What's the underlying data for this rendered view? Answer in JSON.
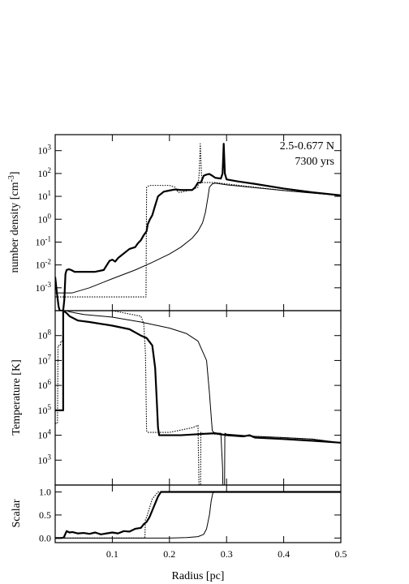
{
  "chart_data": [
    {
      "type": "line",
      "panel": "top",
      "ylabel_main": "number density [cm",
      "ylabel_sup": "-3",
      "ylabel_end": "]",
      "yscale": "log",
      "ylim": [
        0.0001,
        5000
      ],
      "xlim": [
        0.0,
        0.5
      ],
      "yticks": [
        {
          "v": 0.001,
          "base": "10",
          "exp": "-3"
        },
        {
          "v": 0.01,
          "base": "10",
          "exp": "-2"
        },
        {
          "v": 0.1,
          "base": "10",
          "exp": "-1"
        },
        {
          "v": 1,
          "base": "10",
          "exp": "0"
        },
        {
          "v": 10,
          "base": "10",
          "exp": "1"
        },
        {
          "v": 100,
          "base": "10",
          "exp": "2"
        },
        {
          "v": 1000,
          "base": "10",
          "exp": "3"
        }
      ],
      "annotations": [
        "2.5-0.677 N",
        "7300 yrs"
      ],
      "series": [
        {
          "style": "thick",
          "x": [
            0.0,
            0.003,
            0.006,
            0.008,
            0.011,
            0.014,
            0.016,
            0.018,
            0.02,
            0.024,
            0.028,
            0.034,
            0.04,
            0.05,
            0.07,
            0.085,
            0.095,
            0.1,
            0.105,
            0.11,
            0.13,
            0.14,
            0.145,
            0.15,
            0.155,
            0.16,
            0.162,
            0.166,
            0.17,
            0.175,
            0.18,
            0.19,
            0.2,
            0.21,
            0.22,
            0.24,
            0.245,
            0.25,
            0.255,
            0.26,
            0.265,
            0.27,
            0.275,
            0.28,
            0.29,
            0.293,
            0.295,
            0.297,
            0.3,
            0.32,
            0.35,
            0.4,
            0.45,
            0.5
          ],
          "y": [
            0.003,
            0.0006,
            0.00015,
            0.0001,
            0.0001,
            0.0001,
            0.0003,
            0.004,
            0.006,
            0.0065,
            0.006,
            0.005,
            0.005,
            0.005,
            0.005,
            0.006,
            0.015,
            0.017,
            0.014,
            0.02,
            0.05,
            0.06,
            0.09,
            0.12,
            0.2,
            0.3,
            0.6,
            1.0,
            1.5,
            4,
            10,
            16,
            18,
            20,
            19,
            19,
            25,
            40,
            40,
            80,
            90,
            95,
            80,
            65,
            60,
            100,
            2000,
            100,
            55,
            45,
            35,
            22,
            15,
            11
          ]
        },
        {
          "style": "thin",
          "x": [
            0.0,
            0.006,
            0.012,
            0.018,
            0.03,
            0.06,
            0.1,
            0.14,
            0.17,
            0.2,
            0.22,
            0.24,
            0.25,
            0.258,
            0.263,
            0.267,
            0.27,
            0.275,
            0.28,
            0.3,
            0.35,
            0.4,
            0.45,
            0.5
          ],
          "y": [
            0.0006,
            0.0006,
            0.0006,
            0.0006,
            0.0006,
            0.001,
            0.0025,
            0.006,
            0.013,
            0.03,
            0.06,
            0.15,
            0.3,
            0.7,
            2,
            8,
            25,
            35,
            38,
            32,
            24,
            18,
            14,
            11
          ]
        },
        {
          "style": "dotted",
          "x": [
            0.0,
            0.005,
            0.01,
            0.02,
            0.05,
            0.1,
            0.14,
            0.159,
            0.16,
            0.165,
            0.17,
            0.2,
            0.21,
            0.215,
            0.22,
            0.24,
            0.25,
            0.252,
            0.254,
            0.256,
            0.258,
            0.26,
            0.265,
            0.27,
            0.28,
            0.3,
            0.35,
            0.4,
            0.45,
            0.5
          ],
          "y": [
            0.0004,
            0.0004,
            0.0004,
            0.0004,
            0.0004,
            0.0004,
            0.0004,
            0.0004,
            25,
            30,
            30,
            30,
            25,
            15,
            15,
            20,
            25,
            100,
            2000,
            100,
            40,
            40,
            40,
            40,
            40,
            35,
            25,
            18,
            14,
            11
          ]
        }
      ]
    },
    {
      "type": "line",
      "panel": "middle",
      "ylabel": "Temperature [K]",
      "yscale": "log",
      "ylim": [
        100,
        1000000000
      ],
      "xlim": [
        0.0,
        0.5
      ],
      "yticks": [
        {
          "v": 1000,
          "base": "10",
          "exp": "3"
        },
        {
          "v": 10000,
          "base": "10",
          "exp": "4"
        },
        {
          "v": 100000,
          "base": "10",
          "exp": "5"
        },
        {
          "v": 1000000,
          "base": "10",
          "exp": "6"
        },
        {
          "v": 10000000,
          "base": "10",
          "exp": "7"
        },
        {
          "v": 100000000,
          "base": "10",
          "exp": "8"
        }
      ],
      "series": [
        {
          "style": "thick",
          "x": [
            0.0,
            0.004,
            0.004,
            0.014,
            0.014,
            0.017,
            0.02,
            0.025,
            0.04,
            0.06,
            0.1,
            0.13,
            0.15,
            0.16,
            0.17,
            0.175,
            0.178,
            0.18,
            0.182,
            0.185,
            0.19,
            0.2,
            0.22,
            0.25,
            0.28,
            0.3,
            0.33,
            0.34,
            0.35,
            0.4,
            0.45,
            0.5
          ],
          "y": [
            100000,
            100000,
            100000,
            100000,
            1000000000,
            900000000,
            800000000,
            600000000,
            400000000,
            350000000,
            250000000,
            180000000,
            100000000,
            80000000,
            40000000,
            5000000,
            200000,
            20000,
            10000,
            10000,
            10000,
            10000,
            10000,
            11000,
            12000,
            10000,
            9000,
            10000,
            8000,
            7000,
            6000,
            5000
          ]
        },
        {
          "style": "thin",
          "x": [
            0.0,
            0.004,
            0.01,
            0.014,
            0.015,
            0.02,
            0.025,
            0.05,
            0.1,
            0.15,
            0.2,
            0.23,
            0.25,
            0.265,
            0.27,
            0.273,
            0.275,
            0.278,
            0.28,
            0.29,
            0.293,
            0.295,
            0.296,
            0.297,
            0.3,
            0.35,
            0.4,
            0.45,
            0.5
          ],
          "y": [
            100000,
            100000,
            100000,
            100000,
            1000000000,
            1000000000,
            900000000,
            700000000,
            550000000,
            350000000,
            200000000,
            120000000,
            60000000,
            10000000,
            500000,
            60000,
            15000,
            13000,
            12000,
            12000,
            500,
            1,
            1,
            12000,
            11000,
            9000,
            8000,
            7000,
            5000
          ]
        },
        {
          "style": "dotted",
          "x": [
            0.0,
            0.004,
            0.005,
            0.009,
            0.01,
            0.013,
            0.015,
            0.018,
            0.1,
            0.15,
            0.155,
            0.158,
            0.16,
            0.162,
            0.165,
            0.2,
            0.24,
            0.25,
            0.253,
            0.254,
            0.255,
            0.258,
            0.26,
            0.3,
            0.35,
            0.4,
            0.45,
            0.5
          ],
          "y": [
            30000,
            30000,
            40000000,
            40000000,
            60000000,
            60000000,
            1000000000,
            1000000000,
            1000000000,
            600000000,
            300000000,
            20000000,
            15000,
            13000,
            13000,
            13000,
            20000,
            25000,
            1,
            1,
            13000,
            12000,
            12000,
            10000,
            9000,
            8000,
            7000,
            5000
          ]
        }
      ]
    },
    {
      "type": "line",
      "panel": "bottom",
      "ylabel": "Scalar",
      "xlabel": "Radius [pc]",
      "ylim": [
        -0.1,
        1.15
      ],
      "xlim": [
        0.0,
        0.5
      ],
      "yticks": [
        {
          "v": 0.0,
          "label": "0.0"
        },
        {
          "v": 0.5,
          "label": "0.5"
        },
        {
          "v": 1.0,
          "label": "1.0"
        }
      ],
      "xticks": [
        {
          "v": 0.1,
          "label": "0.1"
        },
        {
          "v": 0.2,
          "label": "0.2"
        },
        {
          "v": 0.3,
          "label": "0.3"
        },
        {
          "v": 0.4,
          "label": "0.4"
        },
        {
          "v": 0.5,
          "label": "0.5"
        }
      ],
      "series": [
        {
          "style": "thick",
          "x": [
            0.0,
            0.01,
            0.015,
            0.02,
            0.025,
            0.03,
            0.04,
            0.05,
            0.06,
            0.07,
            0.08,
            0.09,
            0.1,
            0.11,
            0.12,
            0.13,
            0.14,
            0.15,
            0.155,
            0.16,
            0.165,
            0.17,
            0.175,
            0.18,
            0.185,
            0.2,
            0.3,
            0.4,
            0.5
          ],
          "y": [
            0.0,
            0.0,
            0.01,
            0.15,
            0.12,
            0.13,
            0.1,
            0.11,
            0.09,
            0.12,
            0.08,
            0.1,
            0.12,
            0.1,
            0.15,
            0.14,
            0.2,
            0.22,
            0.3,
            0.35,
            0.45,
            0.6,
            0.75,
            0.9,
            1.0,
            1.0,
            1.0,
            1.0,
            1.0
          ]
        },
        {
          "style": "thin",
          "x": [
            0.0,
            0.1,
            0.2,
            0.23,
            0.25,
            0.26,
            0.265,
            0.27,
            0.273,
            0.276,
            0.28,
            0.3,
            0.4,
            0.5
          ],
          "y": [
            0.0,
            0.0,
            0.0,
            0.01,
            0.03,
            0.08,
            0.2,
            0.5,
            0.8,
            0.98,
            1.0,
            1.0,
            1.0,
            1.0
          ]
        },
        {
          "style": "dotted",
          "x": [
            0.0,
            0.1,
            0.15,
            0.157,
            0.158,
            0.16,
            0.165,
            0.17,
            0.18,
            0.19,
            0.2,
            0.3,
            0.4,
            0.5
          ],
          "y": [
            0.0,
            0.0,
            0.0,
            0.0,
            0.4,
            0.45,
            0.65,
            0.85,
            1.0,
            1.0,
            1.0,
            1.0,
            1.0,
            1.0
          ]
        }
      ]
    }
  ]
}
